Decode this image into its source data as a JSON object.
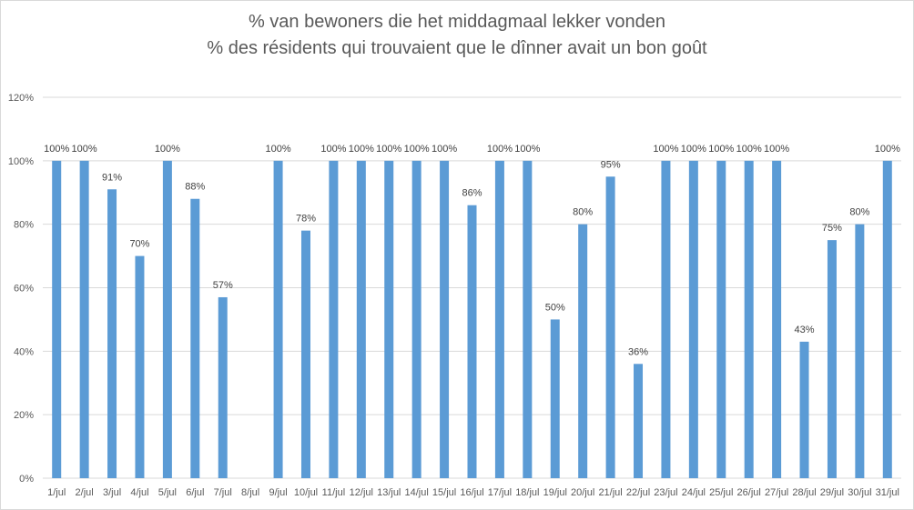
{
  "chart_data": {
    "type": "bar",
    "title": "% van bewoners die het middagmaal lekker vonden",
    "subtitle": "% des résidents qui trouvaient que le dînner avait un bon goût",
    "categories": [
      "1/jul",
      "2/jul",
      "3/jul",
      "4/jul",
      "5/jul",
      "6/jul",
      "7/jul",
      "8/jul",
      "9/jul",
      "10/jul",
      "11/jul",
      "12/jul",
      "13/jul",
      "14/jul",
      "15/jul",
      "16/jul",
      "17/jul",
      "18/jul",
      "19/jul",
      "20/jul",
      "21/jul",
      "22/jul",
      "23/jul",
      "24/jul",
      "25/jul",
      "26/jul",
      "27/jul",
      "28/jul",
      "29/jul",
      "30/jul",
      "31/jul"
    ],
    "values": [
      1.0,
      1.0,
      0.91,
      0.7,
      1.0,
      0.88,
      0.57,
      null,
      1.0,
      0.78,
      1.0,
      1.0,
      1.0,
      1.0,
      1.0,
      0.86,
      1.0,
      1.0,
      0.5,
      0.8,
      0.95,
      0.36,
      1.0,
      1.0,
      1.0,
      1.0,
      1.0,
      0.43,
      0.75,
      0.8,
      1.0
    ],
    "data_labels": [
      "100%",
      "100%",
      "91%",
      "70%",
      "100%",
      "88%",
      "57%",
      "",
      "100%",
      "78%",
      "100%",
      "100%",
      "100%",
      "100%",
      "100%",
      "86%",
      "100%",
      "100%",
      "50%",
      "80%",
      "95%",
      "36%",
      "100%",
      "100%",
      "100%",
      "100%",
      "100%",
      "43%",
      "75%",
      "80%",
      "100%"
    ],
    "y_ticks": [
      "0%",
      "20%",
      "40%",
      "60%",
      "80%",
      "100%",
      "120%"
    ],
    "ylim": [
      0,
      1.2
    ],
    "grid": true,
    "legend": "none",
    "bar_color": "#5b9bd5",
    "grid_color": "#d9d9d9"
  }
}
